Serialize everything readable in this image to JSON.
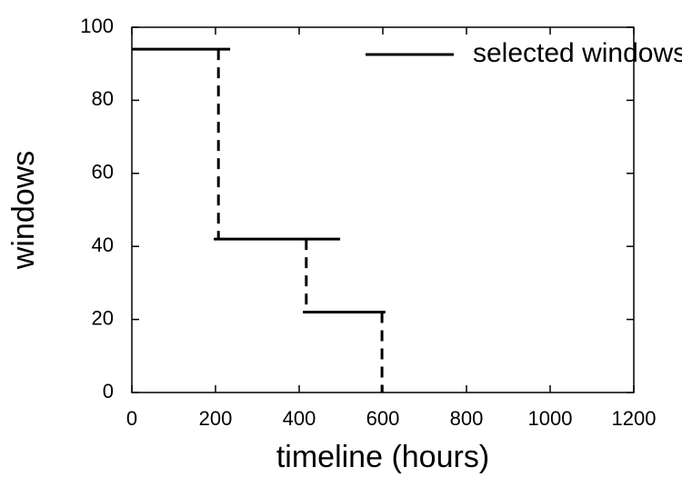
{
  "chart_data": {
    "type": "step-segments",
    "xlabel": "timeline (hours)",
    "ylabel": "windows",
    "xlim": [
      0,
      1200
    ],
    "ylim": [
      0,
      100
    ],
    "xticks": [
      0,
      200,
      400,
      600,
      800,
      1000,
      1200
    ],
    "yticks": [
      0,
      20,
      40,
      60,
      80,
      100
    ],
    "legend": "top right",
    "series": [
      {
        "name": "selected windows",
        "color": "#000000",
        "segments": [
          {
            "x0": 0,
            "x1": 235,
            "y": 94
          },
          {
            "x0": 196,
            "x1": 498,
            "y": 42
          },
          {
            "x0": 409,
            "x1": 606,
            "y": 22
          }
        ],
        "connectors": [
          {
            "x": 207,
            "y0": 94,
            "y1": 42
          },
          {
            "x": 417,
            "y0": 42,
            "y1": 22
          },
          {
            "x": 598,
            "y0": 22,
            "y1": 0
          }
        ]
      }
    ]
  }
}
